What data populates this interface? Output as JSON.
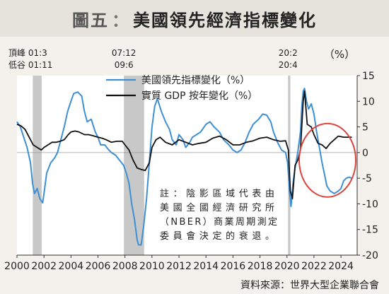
{
  "header": {
    "figure_label": "圖五",
    "separator": "：",
    "title": "美國領先經濟指標變化"
  },
  "source": "資料來源：世界大型企業聯合會",
  "chart_data": {
    "type": "line",
    "title": "美國領先經濟指標變化",
    "xlabel": "",
    "ylabel": "",
    "y_unit_label": "（%）",
    "xlim": [
      2000,
      2025.2
    ],
    "ylim": [
      -20,
      15
    ],
    "xticks": [
      2000,
      2002,
      2004,
      2006,
      2008,
      2010,
      2012,
      2014,
      2016,
      2018,
      2020,
      2022,
      2024
    ],
    "yticks": [
      15,
      10,
      5,
      0,
      -5,
      -10,
      -15,
      -20
    ],
    "y_axis_position": "right",
    "legend_position": "top-center",
    "grid": false,
    "recession_label": {
      "peak_prefix": "頂峰",
      "trough_prefix": "低谷"
    },
    "recessions": [
      {
        "start": 2001.17,
        "end": 2001.83,
        "peak": "01:3",
        "trough": "01:11"
      },
      {
        "start": 2007.92,
        "end": 2009.42,
        "peak": "07:12",
        "trough": "09:6"
      },
      {
        "start": 2020.08,
        "end": 2020.25,
        "peak": "20:2",
        "trough": "20:4"
      }
    ],
    "note": [
      "註：陰影區域代表由",
      "美國全國經濟研究所",
      "（NBER）商業周期測定",
      "委員會決定的衰退。"
    ],
    "highlight_circle": {
      "x": 2023.0,
      "y": -1.5
    },
    "series": [
      {
        "name": "美國領先指標變化（%）",
        "color": "#3f8fd4",
        "points": [
          [
            2000.0,
            6.0
          ],
          [
            2000.25,
            5.0
          ],
          [
            2000.5,
            3.0
          ],
          [
            2000.75,
            1.0
          ],
          [
            2001.0,
            -2.0
          ],
          [
            2001.15,
            -6.0
          ],
          [
            2001.3,
            -8.0
          ],
          [
            2001.5,
            -7.0
          ],
          [
            2001.7,
            -9.0
          ],
          [
            2001.9,
            -9.8
          ],
          [
            2002.0,
            -8.0
          ],
          [
            2002.2,
            -4.0
          ],
          [
            2002.5,
            -2.0
          ],
          [
            2002.8,
            -1.0
          ],
          [
            2003.0,
            0.0
          ],
          [
            2003.2,
            2.0
          ],
          [
            2003.5,
            5.0
          ],
          [
            2003.75,
            8.0
          ],
          [
            2004.0,
            10.0
          ],
          [
            2004.2,
            11.5
          ],
          [
            2004.5,
            11.8
          ],
          [
            2004.8,
            11.0
          ],
          [
            2005.0,
            8.0
          ],
          [
            2005.2,
            6.0
          ],
          [
            2005.5,
            6.5
          ],
          [
            2005.8,
            4.0
          ],
          [
            2006.0,
            3.0
          ],
          [
            2006.2,
            1.5
          ],
          [
            2006.5,
            1.5
          ],
          [
            2006.8,
            0.5
          ],
          [
            2007.0,
            0.0
          ],
          [
            2007.3,
            -0.5
          ],
          [
            2007.6,
            -1.5
          ],
          [
            2007.9,
            -2.5
          ],
          [
            2008.1,
            -4.0
          ],
          [
            2008.3,
            -6.0
          ],
          [
            2008.5,
            -10.0
          ],
          [
            2008.7,
            -13.0
          ],
          [
            2008.9,
            -17.0
          ],
          [
            2009.0,
            -18.0
          ],
          [
            2009.2,
            -18.0
          ],
          [
            2009.4,
            -14.0
          ],
          [
            2009.6,
            -9.0
          ],
          [
            2009.8,
            -2.0
          ],
          [
            2010.0,
            5.0
          ],
          [
            2010.2,
            9.0
          ],
          [
            2010.4,
            10.5
          ],
          [
            2010.7,
            8.0
          ],
          [
            2011.0,
            6.0
          ],
          [
            2011.3,
            4.5
          ],
          [
            2011.5,
            2.5
          ],
          [
            2011.8,
            1.5
          ],
          [
            2012.0,
            3.5
          ],
          [
            2012.3,
            2.5
          ],
          [
            2012.5,
            1.0
          ],
          [
            2012.8,
            2.0
          ],
          [
            2013.0,
            3.0
          ],
          [
            2013.3,
            3.5
          ],
          [
            2013.6,
            4.0
          ],
          [
            2014.0,
            5.5
          ],
          [
            2014.3,
            6.0
          ],
          [
            2014.6,
            5.0
          ],
          [
            2015.0,
            4.0
          ],
          [
            2015.3,
            2.5
          ],
          [
            2015.7,
            1.5
          ],
          [
            2016.0,
            0.5
          ],
          [
            2016.3,
            0.0
          ],
          [
            2016.6,
            0.5
          ],
          [
            2016.9,
            2.0
          ],
          [
            2017.2,
            4.0
          ],
          [
            2017.5,
            5.5
          ],
          [
            2017.9,
            6.5
          ],
          [
            2018.2,
            7.5
          ],
          [
            2018.5,
            7.3
          ],
          [
            2018.8,
            6.0
          ],
          [
            2019.0,
            4.0
          ],
          [
            2019.3,
            2.0
          ],
          [
            2019.6,
            0.5
          ],
          [
            2019.9,
            0.0
          ],
          [
            2020.05,
            -2.0
          ],
          [
            2020.2,
            -8.0
          ],
          [
            2020.3,
            -10.5
          ],
          [
            2020.45,
            -6.0
          ],
          [
            2020.6,
            -3.0
          ],
          [
            2020.8,
            0.0
          ],
          [
            2021.0,
            4.0
          ],
          [
            2021.1,
            9.0
          ],
          [
            2021.2,
            12.0
          ],
          [
            2021.3,
            12.5
          ],
          [
            2021.45,
            10.0
          ],
          [
            2021.6,
            8.5
          ],
          [
            2021.8,
            9.5
          ],
          [
            2022.0,
            7.5
          ],
          [
            2022.2,
            4.0
          ],
          [
            2022.4,
            1.0
          ],
          [
            2022.6,
            -2.0
          ],
          [
            2022.8,
            -4.5
          ],
          [
            2022.95,
            -6.5
          ],
          [
            2023.2,
            -7.5
          ],
          [
            2023.5,
            -8.0
          ],
          [
            2023.8,
            -7.5
          ],
          [
            2024.0,
            -7.0
          ],
          [
            2024.2,
            -5.5
          ],
          [
            2024.4,
            -5.0
          ],
          [
            2024.6,
            -4.8
          ],
          [
            2024.8,
            -5.0
          ]
        ]
      },
      {
        "name": "實質 GDP 按年變化（%）",
        "color": "#111111",
        "points": [
          [
            2000.0,
            5.5
          ],
          [
            2000.3,
            5.2
          ],
          [
            2000.6,
            4.5
          ],
          [
            2000.9,
            3.0
          ],
          [
            2001.2,
            1.5
          ],
          [
            2001.5,
            1.0
          ],
          [
            2001.8,
            0.5
          ],
          [
            2002.0,
            1.0
          ],
          [
            2002.3,
            1.5
          ],
          [
            2002.6,
            2.0
          ],
          [
            2002.9,
            2.0
          ],
          [
            2003.2,
            2.2
          ],
          [
            2003.5,
            2.5
          ],
          [
            2003.8,
            3.5
          ],
          [
            2004.0,
            4.0
          ],
          [
            2004.3,
            4.2
          ],
          [
            2004.6,
            4.0
          ],
          [
            2005.0,
            3.5
          ],
          [
            2005.3,
            3.5
          ],
          [
            2005.6,
            3.3
          ],
          [
            2006.0,
            3.0
          ],
          [
            2006.3,
            2.8
          ],
          [
            2006.6,
            2.5
          ],
          [
            2007.0,
            2.0
          ],
          [
            2007.4,
            2.2
          ],
          [
            2007.8,
            2.2
          ],
          [
            2008.0,
            1.5
          ],
          [
            2008.3,
            0.5
          ],
          [
            2008.6,
            -1.5
          ],
          [
            2008.9,
            -3.0
          ],
          [
            2009.2,
            -3.3
          ],
          [
            2009.5,
            -3.5
          ],
          [
            2009.8,
            -2.0
          ],
          [
            2010.0,
            1.0
          ],
          [
            2010.3,
            2.5
          ],
          [
            2010.6,
            3.0
          ],
          [
            2011.0,
            2.0
          ],
          [
            2011.5,
            1.5
          ],
          [
            2012.0,
            2.5
          ],
          [
            2012.5,
            2.0
          ],
          [
            2013.0,
            1.5
          ],
          [
            2013.5,
            1.8
          ],
          [
            2014.0,
            2.0
          ],
          [
            2014.5,
            2.8
          ],
          [
            2015.0,
            3.2
          ],
          [
            2015.5,
            2.5
          ],
          [
            2016.0,
            1.5
          ],
          [
            2016.5,
            1.5
          ],
          [
            2017.0,
            2.0
          ],
          [
            2017.5,
            2.3
          ],
          [
            2018.0,
            2.8
          ],
          [
            2018.5,
            3.0
          ],
          [
            2019.0,
            2.5
          ],
          [
            2019.5,
            2.2
          ],
          [
            2019.9,
            2.3
          ],
          [
            2020.1,
            0.5
          ],
          [
            2020.25,
            -7.5
          ],
          [
            2020.4,
            -9.0
          ],
          [
            2020.6,
            -2.5
          ],
          [
            2020.8,
            -1.5
          ],
          [
            2021.0,
            0.5
          ],
          [
            2021.2,
            10.0
          ],
          [
            2021.3,
            12.0
          ],
          [
            2021.5,
            5.5
          ],
          [
            2021.8,
            5.0
          ],
          [
            2022.0,
            3.5
          ],
          [
            2022.3,
            1.8
          ],
          [
            2022.6,
            1.5
          ],
          [
            2022.9,
            0.8
          ],
          [
            2023.2,
            1.8
          ],
          [
            2023.5,
            2.5
          ],
          [
            2023.8,
            3.2
          ],
          [
            2024.2,
            3.0
          ],
          [
            2024.6,
            3.0
          ],
          [
            2024.8,
            3.0
          ]
        ]
      }
    ]
  }
}
